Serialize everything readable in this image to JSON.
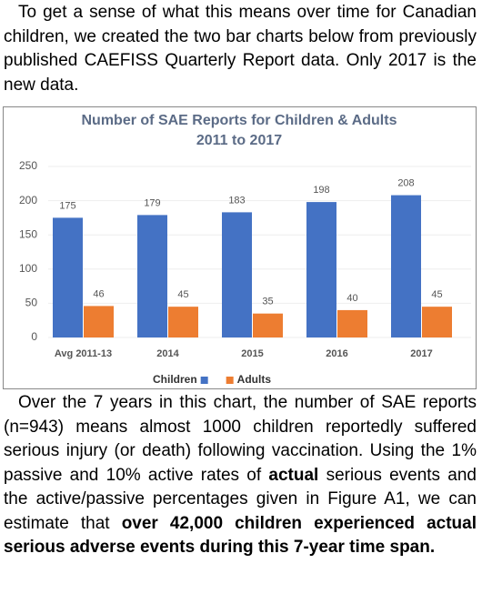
{
  "intro": "To get a sense of what this means over time for Canadian children, we created the two bar charts below from previously published CAEFISS Quarterly Report data. Only 2017 is the new data.",
  "chart_data": {
    "type": "bar",
    "title": "Number of SAE Reports for Children & Adults",
    "subtitle": "2011 to 2017",
    "categories": [
      "Avg 2011-13",
      "2014",
      "2015",
      "2016",
      "2017"
    ],
    "series": [
      {
        "name": "Children",
        "color": "#4472c4",
        "values": [
          175,
          179,
          183,
          198,
          208
        ]
      },
      {
        "name": "Adults",
        "color": "#ed7d31",
        "values": [
          46,
          45,
          35,
          40,
          45
        ]
      }
    ],
    "ylim": [
      0,
      250
    ],
    "yticks": [
      0,
      50,
      100,
      150,
      200,
      250
    ],
    "grid": true
  },
  "body_parts": [
    "Over the 7 years in this chart, the number of SAE reports (n=943) means almost 1000 children reportedly suffered serious injury (or death) following vaccination. Using the 1% passive and 10% active rates of ",
    "actual",
    " serious events and the active/passive percentages given in Figure A1, we can estimate that ",
    "over 42,000 children experienced actual serious adverse events during this 7-year time span."
  ]
}
